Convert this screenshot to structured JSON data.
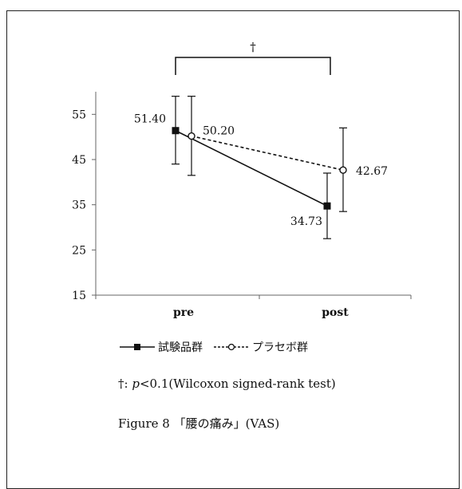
{
  "chart_data": {
    "type": "line",
    "categories": [
      "pre",
      "post"
    ],
    "yticks": [
      15,
      25,
      35,
      45,
      55
    ],
    "ylim": [
      15,
      60
    ],
    "xlabel": "",
    "ylabel": "",
    "series": [
      {
        "name": "試験品群",
        "values": [
          51.4,
          34.73
        ],
        "labels": [
          "51.40",
          "34.73"
        ],
        "err_low": [
          44,
          27.5
        ],
        "err_high": [
          59,
          42
        ],
        "marker": "filled-square",
        "line_style": "solid",
        "color": "#111111"
      },
      {
        "name": "プラセボ群",
        "values": [
          50.2,
          42.67
        ],
        "labels": [
          "50.20",
          "42.67"
        ],
        "err_low": [
          41.5,
          33.5
        ],
        "err_high": [
          59,
          52
        ],
        "marker": "open-circle",
        "line_style": "dashed",
        "color": "#111111"
      }
    ],
    "significance": {
      "symbol": "†",
      "between": [
        "pre",
        "post"
      ]
    },
    "legend_position": "bottom"
  },
  "note": {
    "prefix": "†: ",
    "p": "p",
    "rest": "<0.1(Wilcoxon signed-rank test)"
  },
  "caption": "Figure 8 「腰の痛み」(VAS)"
}
